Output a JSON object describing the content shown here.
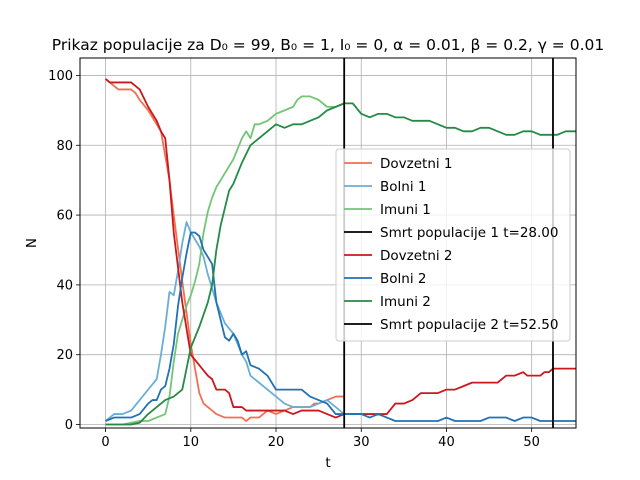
{
  "chart_data": {
    "type": "line",
    "title": "Prikaz populacije za D₀ = 99, B₀ = 1, I₀ = 0, α = 0.01, β = 0.2, γ = 0.01",
    "xlabel": "t",
    "ylabel": "N",
    "xlim": [
      -3,
      55.2
    ],
    "ylim": [
      -1,
      105
    ],
    "xticks": [
      0,
      10,
      20,
      30,
      40,
      50
    ],
    "yticks": [
      0,
      20,
      40,
      60,
      80,
      100
    ],
    "grid": true,
    "legend_position": "center-right",
    "series": [
      {
        "name": "Dovzetni 1",
        "color": "#f07050",
        "width": 1.8,
        "points": [
          [
            0,
            99
          ],
          [
            0.5,
            98
          ],
          [
            1,
            97
          ],
          [
            1.5,
            96
          ],
          [
            2,
            96
          ],
          [
            3,
            96
          ],
          [
            3.5,
            95
          ],
          [
            4,
            93
          ],
          [
            5,
            90
          ],
          [
            5.5,
            88
          ],
          [
            6,
            86
          ],
          [
            6.5,
            84
          ],
          [
            7,
            77
          ],
          [
            7.5,
            70
          ],
          [
            8,
            60
          ],
          [
            9,
            41
          ],
          [
            10,
            23
          ],
          [
            10.5,
            16
          ],
          [
            11,
            9
          ],
          [
            11.5,
            6
          ],
          [
            12,
            5
          ],
          [
            13,
            3
          ],
          [
            14,
            2
          ],
          [
            16,
            2
          ],
          [
            16.5,
            1
          ],
          [
            17,
            2
          ],
          [
            18,
            2
          ],
          [
            19,
            4
          ],
          [
            20,
            3
          ],
          [
            21,
            4
          ],
          [
            22,
            5
          ],
          [
            23,
            5
          ],
          [
            24,
            5
          ],
          [
            24.5,
            6
          ],
          [
            25,
            6
          ],
          [
            26,
            7
          ],
          [
            27,
            8
          ],
          [
            28,
            8
          ]
        ]
      },
      {
        "name": "Bolni 1",
        "color": "#6aaed6",
        "width": 1.8,
        "points": [
          [
            0,
            1
          ],
          [
            1,
            3
          ],
          [
            2,
            3
          ],
          [
            3,
            4
          ],
          [
            4,
            7
          ],
          [
            5,
            10
          ],
          [
            6,
            13
          ],
          [
            6.5,
            20
          ],
          [
            7,
            28
          ],
          [
            7.5,
            38
          ],
          [
            8,
            37
          ],
          [
            8.5,
            44
          ],
          [
            9,
            52
          ],
          [
            9.5,
            58
          ],
          [
            10,
            55
          ],
          [
            10.5,
            53
          ],
          [
            11,
            51
          ],
          [
            11.5,
            48
          ],
          [
            12,
            43
          ],
          [
            13,
            35
          ],
          [
            14,
            29
          ],
          [
            15,
            26
          ],
          [
            16,
            20
          ],
          [
            16.5,
            18
          ],
          [
            17,
            14
          ],
          [
            18,
            12
          ],
          [
            19,
            10
          ],
          [
            20,
            8
          ],
          [
            21,
            6
          ],
          [
            22,
            5
          ],
          [
            23,
            5
          ],
          [
            24,
            5
          ],
          [
            25,
            6
          ],
          [
            26,
            7
          ],
          [
            27,
            5
          ],
          [
            28,
            3
          ]
        ]
      },
      {
        "name": "Imuni 1",
        "color": "#74c476",
        "width": 1.8,
        "points": [
          [
            0,
            0
          ],
          [
            1,
            0
          ],
          [
            2,
            0
          ],
          [
            3,
            0.5
          ],
          [
            4,
            1
          ],
          [
            5,
            1
          ],
          [
            6,
            2
          ],
          [
            7,
            3
          ],
          [
            7.5,
            8
          ],
          [
            8,
            18
          ],
          [
            8.5,
            26
          ],
          [
            9,
            30
          ],
          [
            9.5,
            34
          ],
          [
            10,
            37
          ],
          [
            10.5,
            41
          ],
          [
            11,
            46
          ],
          [
            11.5,
            55
          ],
          [
            12,
            61
          ],
          [
            12.5,
            65
          ],
          [
            13,
            68
          ],
          [
            13.5,
            70
          ],
          [
            14,
            72
          ],
          [
            14.5,
            74
          ],
          [
            15,
            76
          ],
          [
            15.5,
            79
          ],
          [
            16,
            82
          ],
          [
            16.5,
            84
          ],
          [
            17,
            82
          ],
          [
            17.5,
            86
          ],
          [
            18,
            86
          ],
          [
            19,
            87
          ],
          [
            19.5,
            88
          ],
          [
            20,
            89
          ],
          [
            21,
            90
          ],
          [
            22,
            91
          ],
          [
            22.5,
            93
          ],
          [
            23,
            94
          ],
          [
            24,
            94
          ],
          [
            25,
            93
          ],
          [
            26,
            91
          ],
          [
            27,
            91
          ],
          [
            28,
            92
          ]
        ]
      },
      {
        "name": "Dovzetni 2",
        "color": "#cb181d",
        "width": 1.8,
        "points": [
          [
            0,
            99
          ],
          [
            0.5,
            98
          ],
          [
            1,
            98
          ],
          [
            2,
            98
          ],
          [
            3,
            98
          ],
          [
            3.5,
            97
          ],
          [
            4,
            96
          ],
          [
            5,
            91
          ],
          [
            5.5,
            89
          ],
          [
            6,
            87
          ],
          [
            6.5,
            84
          ],
          [
            7,
            82
          ],
          [
            7.5,
            70
          ],
          [
            8,
            55
          ],
          [
            9,
            35
          ],
          [
            10,
            20
          ],
          [
            11,
            17
          ],
          [
            12,
            14
          ],
          [
            12.5,
            13
          ],
          [
            13,
            10
          ],
          [
            14,
            10
          ],
          [
            14.5,
            9
          ],
          [
            15,
            5
          ],
          [
            16,
            5
          ],
          [
            16.5,
            4
          ],
          [
            17,
            4
          ],
          [
            18,
            4
          ],
          [
            19,
            4
          ],
          [
            20,
            4
          ],
          [
            21,
            4
          ],
          [
            22,
            3
          ],
          [
            23,
            4
          ],
          [
            24,
            4
          ],
          [
            25,
            4
          ],
          [
            26,
            3
          ],
          [
            27,
            2
          ],
          [
            28,
            3
          ],
          [
            29,
            3
          ],
          [
            30,
            3
          ],
          [
            31,
            3
          ],
          [
            32,
            3
          ],
          [
            33,
            3
          ],
          [
            34,
            6
          ],
          [
            35,
            6
          ],
          [
            36,
            7
          ],
          [
            37,
            9
          ],
          [
            38,
            9
          ],
          [
            39,
            9
          ],
          [
            40,
            10
          ],
          [
            41,
            10
          ],
          [
            42,
            11
          ],
          [
            43,
            12
          ],
          [
            44,
            12
          ],
          [
            45,
            12
          ],
          [
            46,
            12
          ],
          [
            47,
            14
          ],
          [
            48,
            14
          ],
          [
            49,
            15
          ],
          [
            49.5,
            14
          ],
          [
            50,
            14
          ],
          [
            51,
            14
          ],
          [
            51.5,
            15
          ],
          [
            52,
            15
          ],
          [
            52.5,
            16
          ],
          [
            53,
            16
          ],
          [
            54,
            16
          ],
          [
            55,
            16
          ],
          [
            56,
            16
          ],
          [
            57,
            16
          ]
        ]
      },
      {
        "name": "Bolni 2",
        "color": "#2171b5",
        "width": 1.8,
        "points": [
          [
            0,
            1
          ],
          [
            1,
            2
          ],
          [
            2,
            2
          ],
          [
            3,
            2
          ],
          [
            4,
            3
          ],
          [
            5,
            6
          ],
          [
            5.5,
            7
          ],
          [
            6,
            7
          ],
          [
            6.5,
            10
          ],
          [
            7,
            11
          ],
          [
            7.5,
            16
          ],
          [
            8,
            23
          ],
          [
            8.5,
            34
          ],
          [
            9,
            42
          ],
          [
            9.5,
            49
          ],
          [
            10,
            55
          ],
          [
            10.5,
            55
          ],
          [
            11,
            54
          ],
          [
            11.5,
            50
          ],
          [
            12,
            48
          ],
          [
            12.5,
            46
          ],
          [
            13,
            35
          ],
          [
            13.5,
            30
          ],
          [
            14,
            25
          ],
          [
            14.5,
            24
          ],
          [
            15,
            26
          ],
          [
            15.5,
            24
          ],
          [
            16,
            20
          ],
          [
            16.5,
            21
          ],
          [
            17,
            17
          ],
          [
            18,
            16
          ],
          [
            19,
            14
          ],
          [
            20,
            10
          ],
          [
            21,
            10
          ],
          [
            22,
            10
          ],
          [
            23,
            10
          ],
          [
            24,
            8
          ],
          [
            25,
            7
          ],
          [
            26,
            6
          ],
          [
            27,
            3
          ],
          [
            28,
            3
          ],
          [
            29,
            3
          ],
          [
            30,
            3
          ],
          [
            31,
            2
          ],
          [
            32,
            3
          ],
          [
            33,
            2
          ],
          [
            34,
            1
          ],
          [
            35,
            1
          ],
          [
            36,
            1
          ],
          [
            37,
            1
          ],
          [
            38,
            1
          ],
          [
            39,
            1
          ],
          [
            40,
            2
          ],
          [
            41,
            1
          ],
          [
            42,
            1
          ],
          [
            43,
            1
          ],
          [
            44,
            1
          ],
          [
            45,
            2
          ],
          [
            46,
            2
          ],
          [
            47,
            2
          ],
          [
            48,
            1
          ],
          [
            49,
            2
          ],
          [
            50,
            2
          ],
          [
            51,
            1
          ],
          [
            52,
            1
          ],
          [
            53,
            1
          ],
          [
            54,
            1
          ],
          [
            55,
            1
          ],
          [
            56,
            1
          ],
          [
            57,
            1
          ]
        ]
      },
      {
        "name": "Imuni 2",
        "color": "#238b45",
        "width": 1.8,
        "points": [
          [
            0,
            0
          ],
          [
            1,
            0
          ],
          [
            2,
            0
          ],
          [
            3,
            0
          ],
          [
            4,
            0.5
          ],
          [
            5,
            3
          ],
          [
            6,
            5
          ],
          [
            7,
            7
          ],
          [
            8,
            8
          ],
          [
            9,
            10
          ],
          [
            10,
            22
          ],
          [
            11,
            28
          ],
          [
            12,
            35
          ],
          [
            12.5,
            40
          ],
          [
            13,
            50
          ],
          [
            13.5,
            57
          ],
          [
            14,
            62
          ],
          [
            14.5,
            67
          ],
          [
            15,
            69
          ],
          [
            15.5,
            72
          ],
          [
            16,
            75
          ],
          [
            17,
            80
          ],
          [
            18,
            82
          ],
          [
            19,
            84
          ],
          [
            20,
            86
          ],
          [
            21,
            85
          ],
          [
            22,
            86
          ],
          [
            23,
            86
          ],
          [
            24,
            87
          ],
          [
            25,
            88
          ],
          [
            26,
            90
          ],
          [
            27,
            91
          ],
          [
            28,
            92
          ],
          [
            29,
            92
          ],
          [
            30,
            89
          ],
          [
            31,
            88
          ],
          [
            32,
            89
          ],
          [
            33,
            89
          ],
          [
            34,
            88
          ],
          [
            35,
            88
          ],
          [
            36,
            87
          ],
          [
            37,
            87
          ],
          [
            38,
            87
          ],
          [
            39,
            86
          ],
          [
            40,
            85
          ],
          [
            41,
            85
          ],
          [
            42,
            84
          ],
          [
            43,
            84
          ],
          [
            44,
            85
          ],
          [
            45,
            85
          ],
          [
            46,
            84
          ],
          [
            47,
            83
          ],
          [
            48,
            83
          ],
          [
            49,
            84
          ],
          [
            50,
            84
          ],
          [
            51,
            83
          ],
          [
            52,
            83
          ],
          [
            53,
            83
          ],
          [
            54,
            84
          ],
          [
            55,
            84
          ],
          [
            56,
            84
          ],
          [
            57,
            84
          ]
        ]
      },
      {
        "name": "Smrt populacije 1 t=28.00",
        "color": "#000000",
        "width": 1.8,
        "vline": 28.0
      },
      {
        "name": "Smrt populacije 2 t=52.50",
        "color": "#000000",
        "width": 1.8,
        "vline": 52.5
      }
    ],
    "legend_order": [
      0,
      1,
      2,
      6,
      3,
      4,
      5,
      7
    ]
  }
}
